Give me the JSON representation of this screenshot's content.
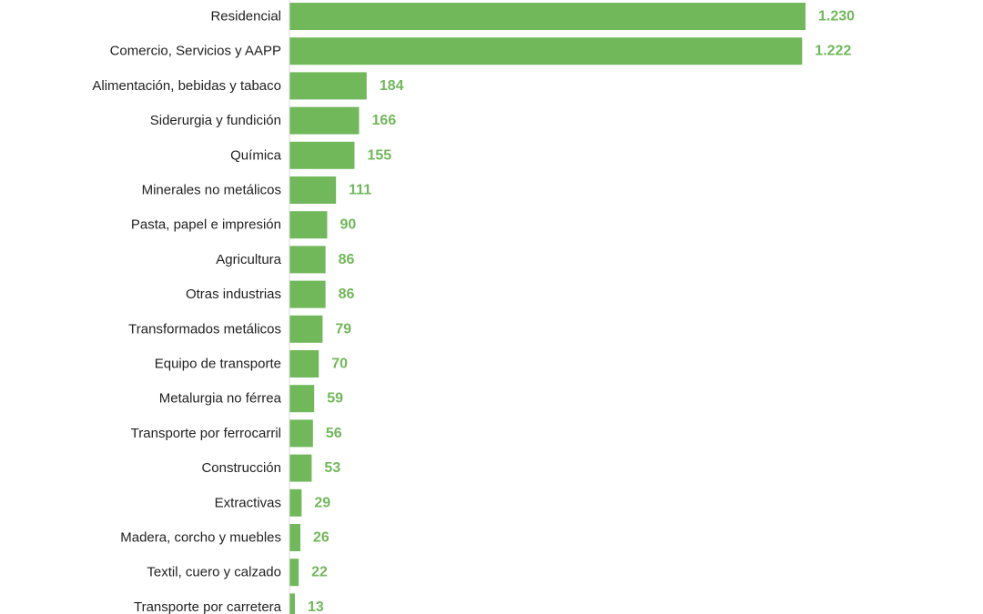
{
  "chart_data": {
    "type": "bar",
    "orientation": "horizontal",
    "title": "",
    "xlabel": "",
    "ylabel": "",
    "categories": [
      "Residencial",
      "Comercio, Servicios y AAPP",
      "Alimentación, bebidas y tabaco",
      "Siderurgia y fundición",
      "Química",
      "Minerales no metálicos",
      "Pasta, papel e impresión",
      "Agricultura",
      "Otras industrias",
      "Transformados metálicos",
      "Equipo de transporte",
      "Metalurgia no férrea",
      "Transporte por ferrocarril",
      "Construcción",
      "Extractivas",
      "Madera, corcho y muebles",
      "Textil, cuero y calzado",
      "Transporte por carretera"
    ],
    "values": [
      1230,
      1222,
      184,
      166,
      155,
      111,
      90,
      86,
      86,
      79,
      70,
      59,
      56,
      53,
      29,
      26,
      22,
      13
    ],
    "value_labels": [
      "1.230",
      "1.222",
      "184",
      "166",
      "155",
      "111",
      "90",
      "86",
      "86",
      "79",
      "70",
      "59",
      "56",
      "53",
      "29",
      "26",
      "22",
      "13"
    ],
    "xlim": [
      0,
      1230
    ],
    "grid": false,
    "legend": "none",
    "bar_color": "#70b85a",
    "label_color": "#70b85a"
  }
}
